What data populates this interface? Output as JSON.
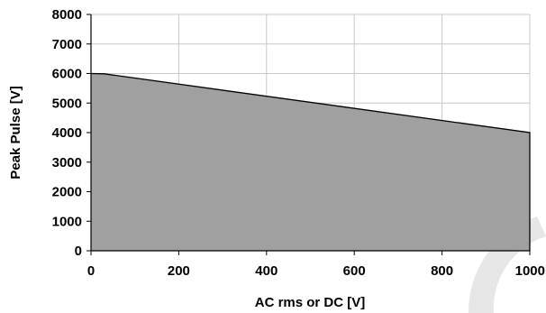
{
  "chart_data": {
    "type": "area",
    "title": "",
    "xlabel": "AC rms or DC [V]",
    "ylabel": "Peak Pulse [V]",
    "xlim": [
      0,
      1000
    ],
    "ylim": [
      0,
      8000
    ],
    "x_ticks": [
      0,
      200,
      400,
      600,
      800,
      1000
    ],
    "y_ticks": [
      0,
      1000,
      2000,
      3000,
      4000,
      5000,
      6000,
      7000,
      8000
    ],
    "grid": true,
    "legend": "none",
    "series": [
      {
        "x": [
          0,
          30,
          1000
        ],
        "y": [
          6000,
          5990,
          4000
        ]
      }
    ],
    "colors": {
      "fill": "#a0a0a0",
      "line": "#000000",
      "grid": "#c8c8c8",
      "axis": "#000000",
      "watermark": "#e6e6e6"
    }
  }
}
